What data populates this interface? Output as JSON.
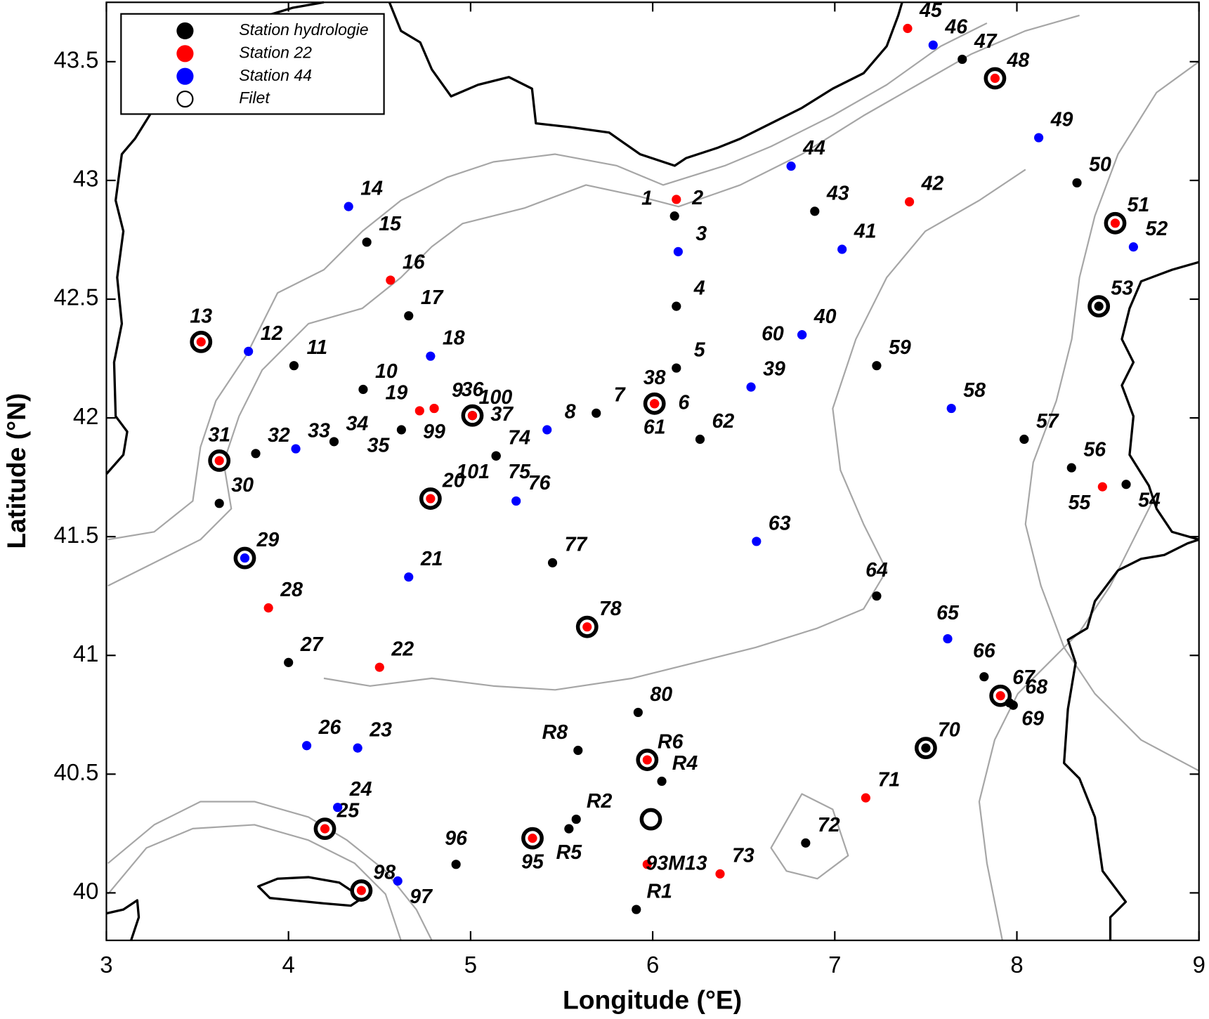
{
  "chart_data": {
    "type": "scatter",
    "x_label": "Longitude (°E)",
    "y_label": "Latitude (°N)",
    "xlim": [
      3,
      9
    ],
    "ylim": [
      39.8,
      43.75
    ],
    "xticks": [
      3,
      4,
      5,
      6,
      7,
      8,
      9
    ],
    "yticks": [
      40,
      40.5,
      41,
      41.5,
      42,
      42.5,
      43,
      43.5
    ],
    "series": [
      {
        "name": "Station hydrologie",
        "color": "#000000",
        "labels": [
          "47",
          "50",
          "53",
          "54",
          "56",
          "57",
          "59",
          "43",
          "2",
          "4",
          "5",
          "62",
          "7",
          "36",
          "100",
          "35",
          "75",
          "74",
          "101",
          "17",
          "15",
          "11",
          "10",
          "34",
          "32",
          "30",
          "27",
          "96",
          "77",
          "80",
          "R8",
          "R4",
          "R2",
          "R5",
          "R1",
          "72",
          "70",
          "64",
          "66",
          "68",
          "69"
        ],
        "x": [
          7.7,
          8.33,
          8.45,
          8.6,
          8.3,
          8.04,
          7.23,
          6.89,
          6.12,
          6.13,
          6.13,
          6.26,
          5.69,
          5.01,
          5.01,
          4.62,
          5.14,
          5.14,
          5.14,
          4.66,
          4.43,
          4.03,
          4.41,
          4.25,
          3.82,
          3.62,
          4.0,
          4.92,
          5.45,
          5.92,
          5.59,
          6.05,
          5.58,
          5.54,
          5.91,
          6.84,
          7.5,
          7.23,
          7.82,
          7.98,
          7.96
        ],
        "y": [
          43.51,
          42.99,
          42.47,
          41.72,
          41.79,
          41.91,
          42.22,
          42.87,
          42.85,
          42.47,
          42.21,
          41.91,
          42.02,
          42.01,
          42.01,
          41.95,
          41.84,
          41.84,
          41.84,
          42.43,
          42.74,
          42.22,
          42.12,
          41.9,
          41.85,
          41.64,
          40.97,
          40.12,
          41.39,
          40.76,
          40.6,
          40.47,
          40.31,
          40.27,
          39.93,
          40.21,
          40.61,
          41.25,
          40.91,
          40.79,
          40.8
        ]
      },
      {
        "name": "Station 22",
        "color": "#ff0000",
        "labels": [
          "45",
          "48",
          "51",
          "55",
          "42",
          "1",
          "6",
          "38",
          "61",
          "19",
          "9",
          "99",
          "37",
          "20",
          "16",
          "13",
          "31",
          "28",
          "22",
          "25",
          "98",
          "95",
          "78",
          "R6",
          "93M13",
          "73",
          "71",
          "67"
        ],
        "x": [
          7.4,
          7.88,
          8.54,
          8.47,
          7.41,
          6.13,
          6.01,
          6.01,
          6.01,
          4.72,
          4.8,
          4.8,
          5.01,
          4.78,
          4.56,
          3.52,
          3.62,
          3.89,
          4.5,
          4.2,
          4.4,
          5.34,
          5.64,
          5.97,
          5.97,
          6.37,
          7.17,
          7.91
        ],
        "y": [
          43.64,
          43.43,
          42.82,
          41.71,
          42.91,
          42.92,
          42.06,
          42.06,
          42.06,
          42.03,
          42.04,
          42.04,
          42.01,
          41.66,
          42.58,
          42.32,
          41.82,
          41.2,
          40.95,
          40.27,
          40.01,
          40.23,
          41.12,
          40.56,
          40.12,
          40.08,
          40.4,
          40.83
        ]
      },
      {
        "name": "Station 44",
        "color": "#0000ff",
        "labels": [
          "46",
          "49",
          "52",
          "58",
          "60",
          "40",
          "39",
          "44",
          "41",
          "3",
          "8",
          "76",
          "18",
          "14",
          "12",
          "33",
          "29",
          "21",
          "26",
          "23",
          "24",
          "97",
          "63",
          "65"
        ],
        "x": [
          7.54,
          8.12,
          8.64,
          7.64,
          6.82,
          6.82,
          6.54,
          6.76,
          7.04,
          6.14,
          5.42,
          5.25,
          4.78,
          4.33,
          3.78,
          4.04,
          3.76,
          4.66,
          4.1,
          4.38,
          4.27,
          4.6,
          6.57,
          7.62
        ],
        "y": [
          43.57,
          43.18,
          42.72,
          42.04,
          42.35,
          42.35,
          42.13,
          43.06,
          42.71,
          42.7,
          41.95,
          41.65,
          42.26,
          42.89,
          42.28,
          41.87,
          41.41,
          41.33,
          40.62,
          40.61,
          40.36,
          40.05,
          41.48,
          41.07
        ]
      },
      {
        "name": "Filet",
        "color": "#000000",
        "marker": "ring",
        "x": [
          7.88,
          8.54,
          8.45,
          6.01,
          5.01,
          4.78,
          3.52,
          3.62,
          3.76,
          4.2,
          4.4,
          5.34,
          5.64,
          5.97,
          7.91,
          7.5,
          5.99
        ],
        "y": [
          43.43,
          42.82,
          42.47,
          42.06,
          42.01,
          41.66,
          42.32,
          41.82,
          41.41,
          40.27,
          40.01,
          40.23,
          41.12,
          40.56,
          40.83,
          40.61,
          40.31
        ]
      }
    ]
  }
}
